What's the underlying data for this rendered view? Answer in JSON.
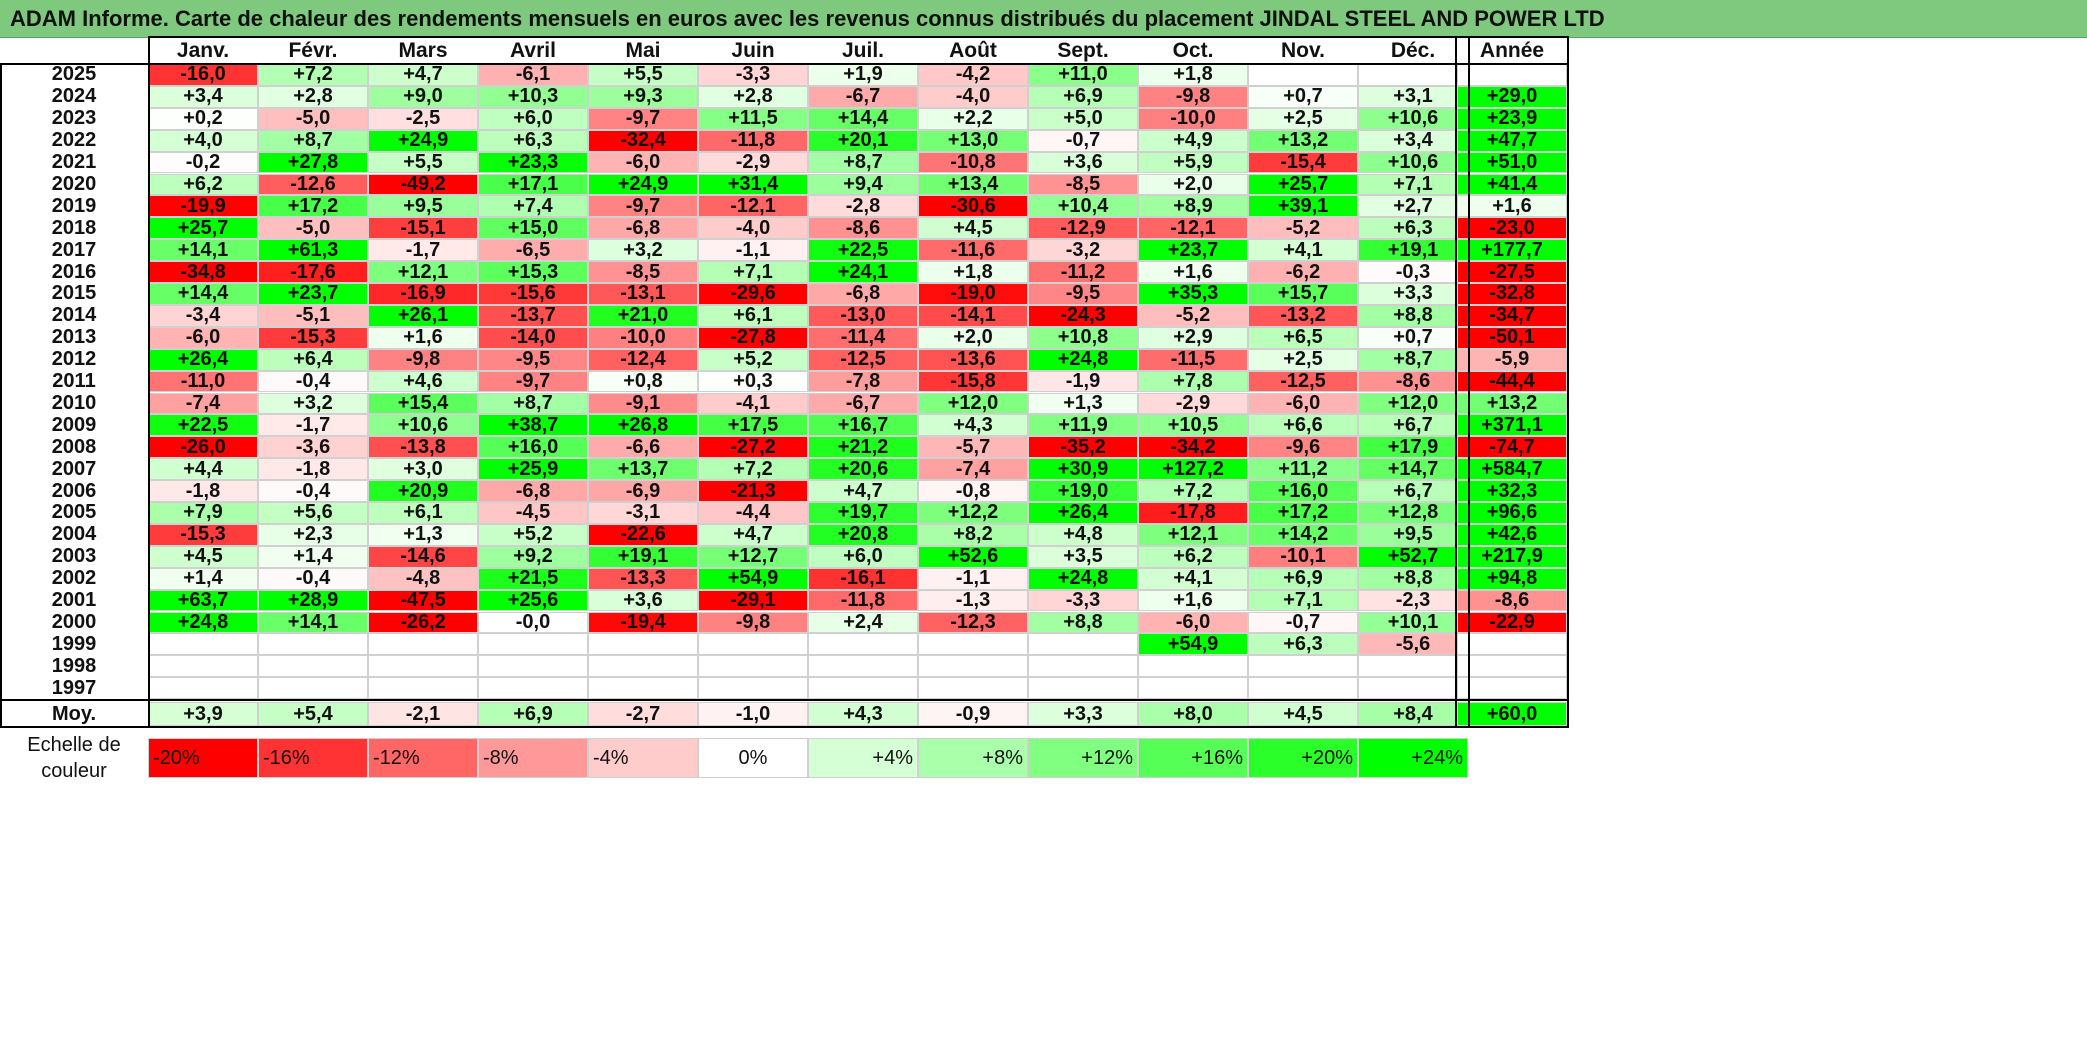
{
  "title": "ADAM Informe. Carte de chaleur des rendements mensuels en euros avec les revenus connus distribués du placement JINDAL STEEL AND POWER LTD",
  "months": [
    "Janv.",
    "Févr.",
    "Mars",
    "Avril",
    "Mai",
    "Juin",
    "Juil.",
    "Août",
    "Sept.",
    "Oct.",
    "Nov.",
    "Déc."
  ],
  "annual_header": "Année",
  "avg_label": "Moy.",
  "scale_label_line1": "Echelle de",
  "scale_label_line2": "couleur",
  "colors": {
    "neg_max": "#ff0000",
    "pos_max": "#00ff00",
    "zero": "#ffffff",
    "title_bg": "#7fc97f"
  },
  "chart_data": {
    "type": "heatmap",
    "title": "ADAM Informe. Carte de chaleur des rendements mensuels en euros avec les revenus connus distribués du placement JINDAL STEEL AND POWER LTD",
    "columns": [
      "Janv.",
      "Févr.",
      "Mars",
      "Avril",
      "Mai",
      "Juin",
      "Juil.",
      "Août",
      "Sept.",
      "Oct.",
      "Nov.",
      "Déc."
    ],
    "rows": [
      {
        "year": "2025",
        "values": [
          "-16,0",
          "+7,2",
          "+4,7",
          "-6,1",
          "+5,5",
          "-3,3",
          "+1,9",
          "-4,2",
          "+11,0",
          "+1,8",
          "",
          ""
        ],
        "annual": ""
      },
      {
        "year": "2024",
        "values": [
          "+3,4",
          "+2,8",
          "+9,0",
          "+10,3",
          "+9,3",
          "+2,8",
          "-6,7",
          "-4,0",
          "+6,9",
          "-9,8",
          "+0,7",
          "+3,1"
        ],
        "annual": "+29,0"
      },
      {
        "year": "2023",
        "values": [
          "+0,2",
          "-5,0",
          "-2,5",
          "+6,0",
          "-9,7",
          "+11,5",
          "+14,4",
          "+2,2",
          "+5,0",
          "-10,0",
          "+2,5",
          "+10,6"
        ],
        "annual": "+23,9"
      },
      {
        "year": "2022",
        "values": [
          "+4,0",
          "+8,7",
          "+24,9",
          "+6,3",
          "-32,4",
          "-11,8",
          "+20,1",
          "+13,0",
          "-0,7",
          "+4,9",
          "+13,2",
          "+3,4"
        ],
        "annual": "+47,7"
      },
      {
        "year": "2021",
        "values": [
          "-0,2",
          "+27,8",
          "+5,5",
          "+23,3",
          "-6,0",
          "-2,9",
          "+8,7",
          "-10,8",
          "+3,6",
          "+5,9",
          "-15,4",
          "+10,6"
        ],
        "annual": "+51,0"
      },
      {
        "year": "2020",
        "values": [
          "+6,2",
          "-12,6",
          "-49,2",
          "+17,1",
          "+24,9",
          "+31,4",
          "+9,4",
          "+13,4",
          "-8,5",
          "+2,0",
          "+25,7",
          "+7,1"
        ],
        "annual": "+41,4"
      },
      {
        "year": "2019",
        "values": [
          "-19,9",
          "+17,2",
          "+9,5",
          "+7,4",
          "-9,7",
          "-12,1",
          "-2,8",
          "-30,6",
          "+10,4",
          "+8,9",
          "+39,1",
          "+2,7"
        ],
        "annual": "+1,6"
      },
      {
        "year": "2018",
        "values": [
          "+25,7",
          "-5,0",
          "-15,1",
          "+15,0",
          "-6,8",
          "-4,0",
          "-8,6",
          "+4,5",
          "-12,9",
          "-12,1",
          "-5,2",
          "+6,3"
        ],
        "annual": "-23,0"
      },
      {
        "year": "2017",
        "values": [
          "+14,1",
          "+61,3",
          "-1,7",
          "-6,5",
          "+3,2",
          "-1,1",
          "+22,5",
          "-11,6",
          "-3,2",
          "+23,7",
          "+4,1",
          "+19,1"
        ],
        "annual": "+177,7"
      },
      {
        "year": "2016",
        "values": [
          "-34,8",
          "-17,6",
          "+12,1",
          "+15,3",
          "-8,5",
          "+7,1",
          "+24,1",
          "+1,8",
          "-11,2",
          "+1,6",
          "-6,2",
          "-0,3"
        ],
        "annual": "-27,5"
      },
      {
        "year": "2015",
        "values": [
          "+14,4",
          "+23,7",
          "-16,9",
          "-15,6",
          "-13,1",
          "-29,6",
          "-6,8",
          "-19,0",
          "-9,5",
          "+35,3",
          "+15,7",
          "+3,3"
        ],
        "annual": "-32,8"
      },
      {
        "year": "2014",
        "values": [
          "-3,4",
          "-5,1",
          "+26,1",
          "-13,7",
          "+21,0",
          "+6,1",
          "-13,0",
          "-14,1",
          "-24,3",
          "-5,2",
          "-13,2",
          "+8,8"
        ],
        "annual": "-34,7"
      },
      {
        "year": "2013",
        "values": [
          "-6,0",
          "-15,3",
          "+1,6",
          "-14,0",
          "-10,0",
          "-27,8",
          "-11,4",
          "+2,0",
          "+10,8",
          "+2,9",
          "+6,5",
          "+0,7"
        ],
        "annual": "-50,1"
      },
      {
        "year": "2012",
        "values": [
          "+26,4",
          "+6,4",
          "-9,8",
          "-9,5",
          "-12,4",
          "+5,2",
          "-12,5",
          "-13,6",
          "+24,8",
          "-11,5",
          "+2,5",
          "+8,7"
        ],
        "annual": "-5,9"
      },
      {
        "year": "2011",
        "values": [
          "-11,0",
          "-0,4",
          "+4,6",
          "-9,7",
          "+0,8",
          "+0,3",
          "-7,8",
          "-15,8",
          "-1,9",
          "+7,8",
          "-12,5",
          "-8,6"
        ],
        "annual": "-44,4"
      },
      {
        "year": "2010",
        "values": [
          "-7,4",
          "+3,2",
          "+15,4",
          "+8,7",
          "-9,1",
          "-4,1",
          "-6,7",
          "+12,0",
          "+1,3",
          "-2,9",
          "-6,0",
          "+12,0"
        ],
        "annual": "+13,2"
      },
      {
        "year": "2009",
        "values": [
          "+22,5",
          "-1,7",
          "+10,6",
          "+38,7",
          "+26,8",
          "+17,5",
          "+16,7",
          "+4,3",
          "+11,9",
          "+10,5",
          "+6,6",
          "+6,7"
        ],
        "annual": "+371,1"
      },
      {
        "year": "2008",
        "values": [
          "-26,0",
          "-3,6",
          "-13,8",
          "+16,0",
          "-6,6",
          "-27,2",
          "+21,2",
          "-5,7",
          "-35,2",
          "-34,2",
          "-9,6",
          "+17,9"
        ],
        "annual": "-74,7"
      },
      {
        "year": "2007",
        "values": [
          "+4,4",
          "-1,8",
          "+3,0",
          "+25,9",
          "+13,7",
          "+7,2",
          "+20,6",
          "-7,4",
          "+30,9",
          "+127,2",
          "+11,2",
          "+14,7"
        ],
        "annual": "+584,7"
      },
      {
        "year": "2006",
        "values": [
          "-1,8",
          "-0,4",
          "+20,9",
          "-6,8",
          "-6,9",
          "-21,3",
          "+4,7",
          "-0,8",
          "+19,0",
          "+7,2",
          "+16,0",
          "+6,7"
        ],
        "annual": "+32,3"
      },
      {
        "year": "2005",
        "values": [
          "+7,9",
          "+5,6",
          "+6,1",
          "-4,5",
          "-3,1",
          "-4,4",
          "+19,7",
          "+12,2",
          "+26,4",
          "-17,8",
          "+17,2",
          "+12,8"
        ],
        "annual": "+96,6"
      },
      {
        "year": "2004",
        "values": [
          "-15,3",
          "+2,3",
          "+1,3",
          "+5,2",
          "-22,6",
          "+4,7",
          "+20,8",
          "+8,2",
          "+4,8",
          "+12,1",
          "+14,2",
          "+9,5"
        ],
        "annual": "+42,6"
      },
      {
        "year": "2003",
        "values": [
          "+4,5",
          "+1,4",
          "-14,6",
          "+9,2",
          "+19,1",
          "+12,7",
          "+6,0",
          "+52,6",
          "+3,5",
          "+6,2",
          "-10,1",
          "+52,7"
        ],
        "annual": "+217,9"
      },
      {
        "year": "2002",
        "values": [
          "+1,4",
          "-0,4",
          "-4,8",
          "+21,5",
          "-13,3",
          "+54,9",
          "-16,1",
          "-1,1",
          "+24,8",
          "+4,1",
          "+6,9",
          "+8,8"
        ],
        "annual": "+94,8"
      },
      {
        "year": "2001",
        "values": [
          "+63,7",
          "+28,9",
          "-47,5",
          "+25,6",
          "+3,6",
          "-29,1",
          "-11,8",
          "-1,3",
          "-3,3",
          "+1,6",
          "+7,1",
          "-2,3"
        ],
        "annual": "-8,6"
      },
      {
        "year": "2000",
        "values": [
          "+24,8",
          "+14,1",
          "-26,2",
          "-0,0",
          "-19,4",
          "-9,8",
          "+2,4",
          "-12,3",
          "+8,8",
          "-6,0",
          "-0,7",
          "+10,1"
        ],
        "annual": "-22,9"
      },
      {
        "year": "1999",
        "values": [
          "",
          "",
          "",
          "",
          "",
          "",
          "",
          "",
          "",
          "+54,9",
          "+6,3",
          "-5,6"
        ],
        "annual": ""
      },
      {
        "year": "1998",
        "values": [
          "",
          "",
          "",
          "",
          "",
          "",
          "",
          "",
          "",
          "",
          "",
          ""
        ],
        "annual": ""
      },
      {
        "year": "1997",
        "values": [
          "",
          "",
          "",
          "",
          "",
          "",
          "",
          "",
          "",
          "",
          "",
          ""
        ],
        "annual": ""
      }
    ],
    "average": {
      "label": "Moy.",
      "values": [
        "+3,9",
        "+5,4",
        "-2,1",
        "+6,9",
        "-2,7",
        "-1,0",
        "+4,3",
        "-0,9",
        "+3,3",
        "+8,0",
        "+4,5",
        "+8,4"
      ],
      "annual": "+60,0"
    },
    "scale": [
      "-20%",
      "-16%",
      "-12%",
      "-8%",
      "-4%",
      "0%",
      "+4%",
      "+8%",
      "+12%",
      "+16%",
      "+20%",
      "+24%"
    ],
    "scale_range": [
      -20,
      24
    ]
  }
}
